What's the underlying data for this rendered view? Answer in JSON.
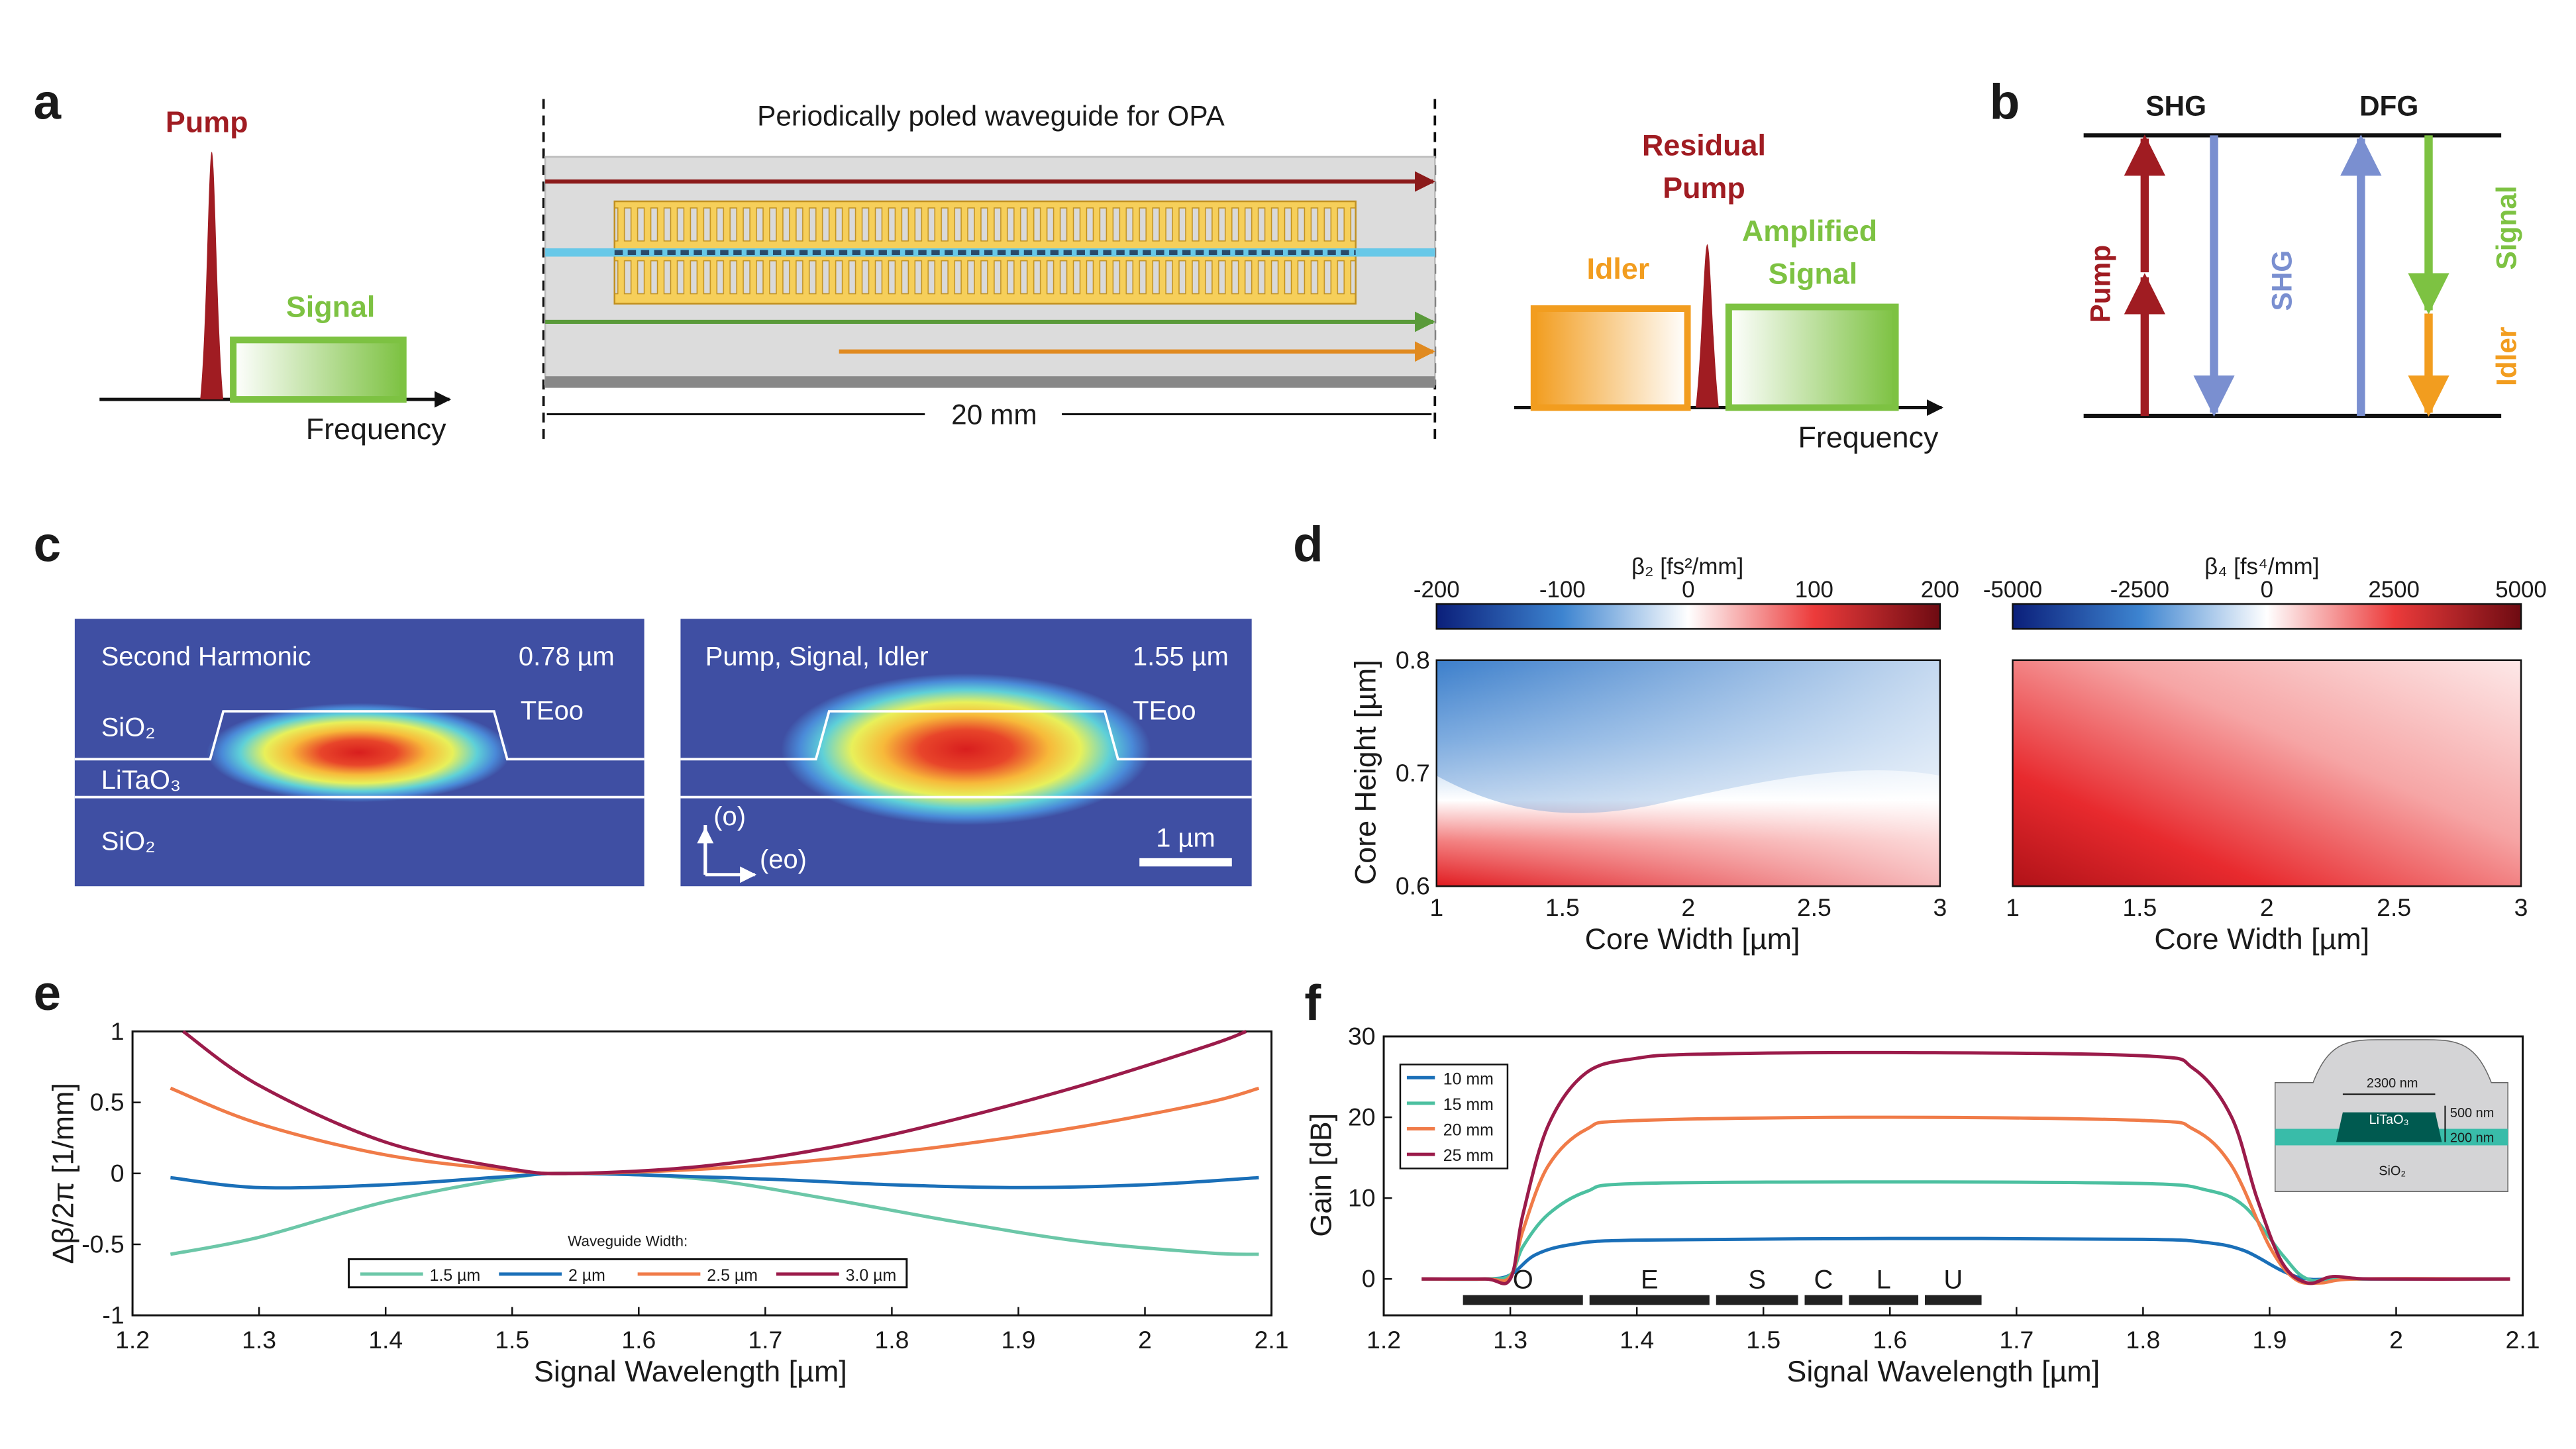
{
  "panels": {
    "a": {
      "label": "a",
      "pump": "Pump",
      "signal": "Signal",
      "frequency_left": "Frequency",
      "waveguide_title": "Periodically poled waveguide for OPA",
      "length": "20 mm",
      "residual_pump_1": "Residual",
      "residual_pump_2": "Pump",
      "amplified_1": "Amplified",
      "amplified_2": "Signal",
      "idler": "Idler",
      "frequency_right": "Frequency"
    },
    "b": {
      "label": "b",
      "shg_title": "SHG",
      "dfg_title": "DFG",
      "pump": "Pump",
      "shg": "SHG",
      "signal": "Signal",
      "idler": "Idler"
    },
    "c": {
      "label": "c",
      "left": {
        "title": "Second Harmonic",
        "wavelength": "0.78 µm",
        "mode": "TEoo",
        "cladding": "SiO₂",
        "core": "LiTaO₃",
        "substrate": "SiO₂"
      },
      "right": {
        "title": "Pump, Signal, Idler",
        "wavelength": "1.55 µm",
        "mode": "TEoo",
        "axis_o": "(o)",
        "axis_eo": "(eo)",
        "scale": "1 µm"
      }
    },
    "d": {
      "label": "d"
    },
    "e": {
      "label": "e"
    },
    "f": {
      "label": "f"
    }
  },
  "colors": {
    "pump": "#a01c22",
    "signal": "#7dc242",
    "idler": "#f29d1f",
    "shg": "#7a8fd0",
    "mode_bg": "#3f4fa3"
  },
  "chart_data": [
    {
      "id": "d-left",
      "type": "heatmap",
      "colorbar_label": "β₂ [fs²/mm]",
      "colorbar_ticks": [
        "-200",
        "-100",
        "0",
        "100",
        "200"
      ],
      "colorbar_range": [
        -200,
        200
      ],
      "xlabel": "Core Width [µm]",
      "ylabel": "Core Height [µm]",
      "xlim": [
        1,
        3
      ],
      "ylim": [
        0.6,
        0.8
      ],
      "xticks": [
        "1",
        "1.5",
        "2",
        "2.5",
        "3"
      ],
      "yticks": [
        "0.6",
        "0.7",
        "0.8"
      ]
    },
    {
      "id": "d-right",
      "type": "heatmap",
      "colorbar_label": "β₄ [fs⁴/mm]",
      "colorbar_ticks": [
        "-5000",
        "-2500",
        "0",
        "2500",
        "5000"
      ],
      "colorbar_range": [
        -5000,
        5000
      ],
      "xlabel": "Core Width [µm]",
      "xlim": [
        1,
        3
      ],
      "ylim": [
        0.6,
        0.8
      ],
      "xticks": [
        "1",
        "1.5",
        "2",
        "2.5",
        "3"
      ]
    },
    {
      "id": "e",
      "type": "line",
      "xlabel": "Signal Wavelength [µm]",
      "ylabel": "Δβ/2π [1/mm]",
      "xlim": [
        1.2,
        2.1
      ],
      "ylim": [
        -1,
        1
      ],
      "xticks": [
        "1.2",
        "1.3",
        "1.4",
        "1.5",
        "1.6",
        "1.7",
        "1.8",
        "1.9",
        "2",
        "2.1"
      ],
      "yticks": [
        "-1",
        "-0.5",
        "0",
        "0.5",
        "1"
      ],
      "legend_title": "Waveguide Width:",
      "legend_placement": "bottom-center",
      "series": [
        {
          "name": "1.5 µm",
          "color": "#6cc7a8",
          "x": [
            1.23,
            1.3,
            1.4,
            1.5,
            1.55,
            1.65,
            1.75,
            1.85,
            1.95,
            2.05,
            2.09
          ],
          "y": [
            -0.57,
            -0.45,
            -0.2,
            -0.03,
            0,
            -0.04,
            -0.18,
            -0.34,
            -0.48,
            -0.56,
            -0.57
          ]
        },
        {
          "name": "2 µm",
          "color": "#1a6fb8",
          "x": [
            1.23,
            1.3,
            1.4,
            1.5,
            1.55,
            1.7,
            1.8,
            1.9,
            2.0,
            2.09
          ],
          "y": [
            -0.03,
            -0.1,
            -0.08,
            -0.02,
            0,
            -0.04,
            -0.08,
            -0.1,
            -0.08,
            -0.03
          ]
        },
        {
          "name": "2.5 µm",
          "color": "#f07b48",
          "x": [
            1.23,
            1.3,
            1.4,
            1.5,
            1.55,
            1.65,
            1.75,
            1.85,
            1.95,
            2.05,
            2.09
          ],
          "y": [
            0.6,
            0.35,
            0.13,
            0.02,
            0,
            0.03,
            0.1,
            0.2,
            0.33,
            0.5,
            0.6
          ]
        },
        {
          "name": "3.0 µm",
          "color": "#9b1b4a",
          "x": [
            1.24,
            1.3,
            1.4,
            1.5,
            1.55,
            1.65,
            1.75,
            1.85,
            1.95,
            2.05,
            2.08
          ],
          "y": [
            1.0,
            0.62,
            0.22,
            0.03,
            0,
            0.05,
            0.18,
            0.38,
            0.62,
            0.9,
            1.0
          ]
        }
      ]
    },
    {
      "id": "f",
      "type": "line",
      "xlabel": "Signal Wavelength [µm]",
      "ylabel": "Gain [dB]",
      "xlim": [
        1.2,
        2.1
      ],
      "ylim": [
        -4.5,
        30
      ],
      "xticks": [
        "1.2",
        "1.3",
        "1.4",
        "1.5",
        "1.6",
        "1.7",
        "1.8",
        "1.9",
        "2",
        "2.1"
      ],
      "yticks": [
        "0",
        "10",
        "20",
        "30"
      ],
      "legend_placement": "top-left",
      "bands": [
        {
          "name": "O",
          "range": [
            1.26,
            1.36
          ]
        },
        {
          "name": "E",
          "range": [
            1.36,
            1.46
          ]
        },
        {
          "name": "S",
          "range": [
            1.46,
            1.53
          ]
        },
        {
          "name": "C",
          "range": [
            1.53,
            1.565
          ]
        },
        {
          "name": "L",
          "range": [
            1.565,
            1.625
          ]
        },
        {
          "name": "U",
          "range": [
            1.625,
            1.675
          ]
        }
      ],
      "inset": {
        "width": "2300 nm",
        "height": "500 nm",
        "slab": "200 nm",
        "core": "LiTaO₃",
        "substrate": "SiO₂"
      },
      "series": [
        {
          "name": "10 mm",
          "color": "#1a6fb8",
          "x": [
            1.23,
            1.28,
            1.3,
            1.32,
            1.35,
            1.4,
            1.6,
            1.8,
            1.85,
            1.88,
            1.91,
            1.93,
            1.96,
            2.09
          ],
          "y": [
            0,
            0,
            0.5,
            3,
            4.3,
            4.8,
            5,
            4.9,
            4.5,
            3.5,
            1,
            0,
            0,
            0
          ]
        },
        {
          "name": "15 mm",
          "color": "#4cc0a0",
          "x": [
            1.23,
            1.28,
            1.3,
            1.31,
            1.33,
            1.36,
            1.4,
            1.6,
            1.8,
            1.85,
            1.88,
            1.91,
            1.93,
            1.96,
            2.09
          ],
          "y": [
            0,
            0,
            0.5,
            4,
            8,
            10.8,
            11.8,
            12,
            11.8,
            11,
            9,
            3,
            0,
            0,
            0
          ]
        },
        {
          "name": "20 mm",
          "color": "#f07b48",
          "x": [
            1.23,
            1.28,
            1.3,
            1.31,
            1.33,
            1.36,
            1.4,
            1.6,
            1.8,
            1.84,
            1.87,
            1.9,
            1.92,
            1.94,
            1.97,
            2.09
          ],
          "y": [
            0,
            0,
            0.3,
            6,
            14,
            18.5,
            19.6,
            20,
            19.6,
            18.5,
            14,
            4,
            0,
            -0.5,
            0,
            0
          ]
        },
        {
          "name": "25 mm",
          "color": "#9b1b4a",
          "x": [
            1.23,
            1.28,
            1.3,
            1.31,
            1.33,
            1.36,
            1.4,
            1.45,
            1.6,
            1.8,
            1.84,
            1.87,
            1.89,
            1.91,
            1.93,
            1.95,
            1.98,
            2.09
          ],
          "y": [
            0,
            0,
            0,
            8,
            19,
            25.5,
            27.3,
            27.8,
            28,
            27.6,
            26,
            20,
            10,
            2,
            -0.5,
            0.3,
            0,
            0
          ]
        }
      ]
    }
  ]
}
